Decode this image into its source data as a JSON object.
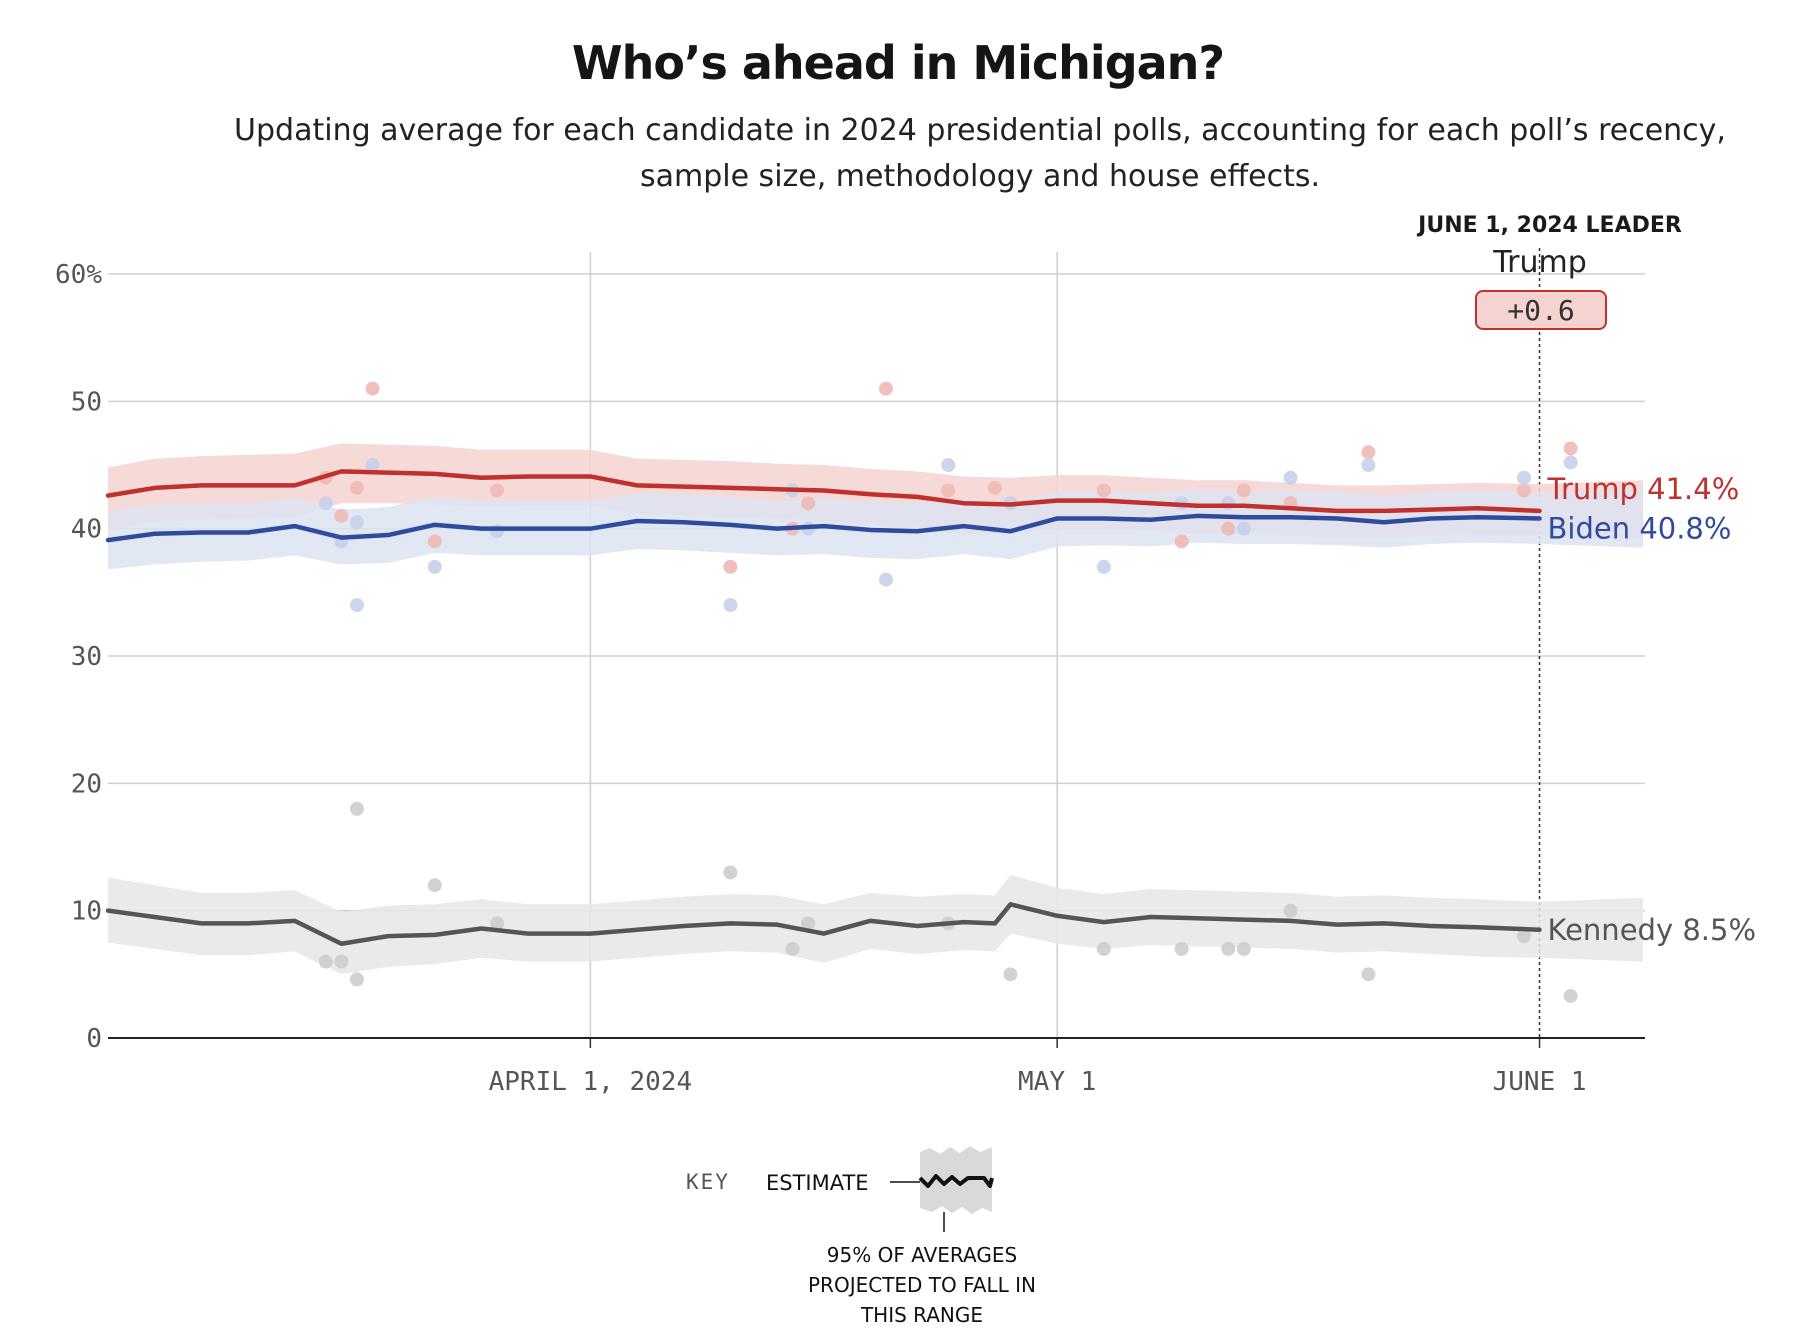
{
  "title": "Who’s ahead in Michigan?",
  "subtitle": "Updating average for each candidate in 2024 presidential polls, accounting for each poll’s recency, sample size, methodology and house effects.",
  "leader": {
    "heading": "JUNE 1, 2024 LEADER",
    "name": "Trump",
    "margin": "+0.6"
  },
  "key": {
    "title": "KEY",
    "estimate_label": "ESTIMATE",
    "range_note": [
      "95% OF AVERAGES",
      "PROJECTED TO FALL IN",
      "THIS RANGE"
    ]
  },
  "colors": {
    "trump": "#c0302c",
    "trump_band": "#f4d3d1",
    "biden": "#2f4b9e",
    "biden_band": "#dde3f2",
    "kennedy": "#555555",
    "kennedy_band": "#e6e6e6"
  },
  "chart_data": {
    "type": "line",
    "title": "Who’s ahead in Michigan?",
    "xlabel": "",
    "ylabel": "",
    "y_ticks": [
      0,
      10,
      20,
      30,
      40,
      50,
      60
    ],
    "y_tick_labels": [
      "0",
      "10",
      "20",
      "30",
      "40",
      "50",
      "60%"
    ],
    "ylim": [
      0,
      60
    ],
    "xlim": [
      "2024-03-01",
      "2024-06-09"
    ],
    "x_ticks": [
      {
        "date": "2024-04-01",
        "label": "APRIL 1, 2024"
      },
      {
        "date": "2024-05-01",
        "label": "MAY 1"
      },
      {
        "date": "2024-06-01",
        "label": "JUNE 1"
      }
    ],
    "grid": true,
    "current_date": "2024-06-01",
    "series": [
      {
        "name": "Trump",
        "end_label": "Trump 41.4%",
        "color": "#c0302c",
        "x": [
          "2024-03-01",
          "2024-03-04",
          "2024-03-07",
          "2024-03-10",
          "2024-03-13",
          "2024-03-16",
          "2024-03-19",
          "2024-03-22",
          "2024-03-25",
          "2024-03-28",
          "2024-04-01",
          "2024-04-04",
          "2024-04-07",
          "2024-04-10",
          "2024-04-13",
          "2024-04-16",
          "2024-04-19",
          "2024-04-22",
          "2024-04-25",
          "2024-04-28",
          "2024-05-01",
          "2024-05-04",
          "2024-05-07",
          "2024-05-10",
          "2024-05-13",
          "2024-05-16",
          "2024-05-19",
          "2024-05-22",
          "2024-05-25",
          "2024-05-28",
          "2024-06-01"
        ],
        "values": [
          42.6,
          43.2,
          43.4,
          43.4,
          43.4,
          44.5,
          44.4,
          44.3,
          44.0,
          44.1,
          44.1,
          43.4,
          43.3,
          43.2,
          43.1,
          43.0,
          42.7,
          42.5,
          42.0,
          41.9,
          42.2,
          42.2,
          42.0,
          41.8,
          41.8,
          41.6,
          41.4,
          41.4,
          41.5,
          41.6,
          41.4
        ],
        "band_low": [
          40.0,
          40.5,
          40.7,
          40.8,
          40.9,
          42.0,
          42.0,
          41.9,
          41.7,
          41.8,
          41.8,
          41.2,
          41.0,
          40.9,
          40.8,
          40.6,
          40.3,
          40.1,
          39.6,
          39.6,
          40.0,
          40.0,
          39.8,
          39.6,
          39.6,
          39.4,
          39.3,
          39.3,
          39.4,
          39.5,
          39.5
        ],
        "band_high": [
          44.8,
          45.5,
          45.7,
          45.8,
          45.9,
          46.7,
          46.6,
          46.5,
          46.2,
          46.2,
          46.2,
          45.5,
          45.4,
          45.3,
          45.1,
          45.0,
          44.7,
          44.5,
          44.1,
          44.0,
          44.2,
          44.2,
          44.0,
          43.8,
          43.8,
          43.6,
          43.4,
          43.4,
          43.5,
          43.6,
          43.5
        ],
        "polls": [
          {
            "date": "2024-03-15",
            "value": 44.0
          },
          {
            "date": "2024-03-16",
            "value": 41.0
          },
          {
            "date": "2024-03-17",
            "value": 43.2
          },
          {
            "date": "2024-03-18",
            "value": 51.0
          },
          {
            "date": "2024-03-22",
            "value": 39.0
          },
          {
            "date": "2024-03-26",
            "value": 43.0
          },
          {
            "date": "2024-04-10",
            "value": 37.0
          },
          {
            "date": "2024-04-14",
            "value": 40.0
          },
          {
            "date": "2024-04-15",
            "value": 42.0
          },
          {
            "date": "2024-04-20",
            "value": 51.0
          },
          {
            "date": "2024-04-24",
            "value": 43.0
          },
          {
            "date": "2024-04-27",
            "value": 43.2
          },
          {
            "date": "2024-05-04",
            "value": 43.0
          },
          {
            "date": "2024-05-09",
            "value": 39.0
          },
          {
            "date": "2024-05-12",
            "value": 40.0
          },
          {
            "date": "2024-05-13",
            "value": 43.0
          },
          {
            "date": "2024-05-16",
            "value": 42.0
          },
          {
            "date": "2024-05-21",
            "value": 46.0
          },
          {
            "date": "2024-05-31",
            "value": 43.0
          },
          {
            "date": "2024-06-03",
            "value": 46.3
          }
        ]
      },
      {
        "name": "Biden",
        "end_label": "Biden 40.8%",
        "color": "#2f4b9e",
        "x": [
          "2024-03-01",
          "2024-03-04",
          "2024-03-07",
          "2024-03-10",
          "2024-03-13",
          "2024-03-16",
          "2024-03-19",
          "2024-03-22",
          "2024-03-25",
          "2024-03-28",
          "2024-04-01",
          "2024-04-04",
          "2024-04-07",
          "2024-04-10",
          "2024-04-13",
          "2024-04-16",
          "2024-04-19",
          "2024-04-22",
          "2024-04-25",
          "2024-04-28",
          "2024-05-01",
          "2024-05-04",
          "2024-05-07",
          "2024-05-10",
          "2024-05-13",
          "2024-05-16",
          "2024-05-19",
          "2024-05-22",
          "2024-05-25",
          "2024-05-28",
          "2024-06-01"
        ],
        "values": [
          39.1,
          39.6,
          39.7,
          39.7,
          40.2,
          39.3,
          39.5,
          40.3,
          40.0,
          40.0,
          40.0,
          40.6,
          40.5,
          40.3,
          40.0,
          40.2,
          39.9,
          39.8,
          40.2,
          39.8,
          40.8,
          40.8,
          40.7,
          41.0,
          40.9,
          40.9,
          40.8,
          40.5,
          40.8,
          40.9,
          40.8
        ],
        "band_low": [
          36.8,
          37.2,
          37.4,
          37.5,
          37.9,
          37.2,
          37.3,
          38.1,
          37.9,
          37.9,
          37.9,
          38.4,
          38.3,
          38.1,
          37.9,
          38.0,
          37.7,
          37.6,
          38.0,
          37.6,
          38.6,
          38.7,
          38.6,
          38.9,
          38.8,
          38.8,
          38.7,
          38.5,
          38.8,
          38.9,
          38.8
        ],
        "band_high": [
          41.4,
          41.9,
          42.0,
          42.0,
          42.4,
          41.5,
          41.7,
          42.5,
          42.2,
          42.2,
          42.2,
          42.8,
          42.7,
          42.5,
          42.2,
          42.4,
          42.1,
          42.0,
          42.4,
          42.0,
          42.9,
          42.9,
          42.8,
          43.1,
          43.0,
          43.0,
          42.9,
          42.6,
          42.9,
          43.0,
          42.8
        ],
        "polls": [
          {
            "date": "2024-03-15",
            "value": 42.0
          },
          {
            "date": "2024-03-16",
            "value": 39.0
          },
          {
            "date": "2024-03-17",
            "value": 34.0
          },
          {
            "date": "2024-03-17",
            "value": 40.5
          },
          {
            "date": "2024-03-18",
            "value": 45.0
          },
          {
            "date": "2024-03-22",
            "value": 37.0
          },
          {
            "date": "2024-03-26",
            "value": 39.8
          },
          {
            "date": "2024-04-10",
            "value": 34.0
          },
          {
            "date": "2024-04-14",
            "value": 43.0
          },
          {
            "date": "2024-04-15",
            "value": 40.0
          },
          {
            "date": "2024-04-20",
            "value": 36.0
          },
          {
            "date": "2024-04-24",
            "value": 45.0
          },
          {
            "date": "2024-04-28",
            "value": 42.0
          },
          {
            "date": "2024-05-04",
            "value": 37.0
          },
          {
            "date": "2024-05-09",
            "value": 42.0
          },
          {
            "date": "2024-05-12",
            "value": 42.0
          },
          {
            "date": "2024-05-13",
            "value": 40.0
          },
          {
            "date": "2024-05-16",
            "value": 44.0
          },
          {
            "date": "2024-05-21",
            "value": 45.0
          },
          {
            "date": "2024-05-31",
            "value": 44.0
          },
          {
            "date": "2024-06-03",
            "value": 45.2
          }
        ]
      },
      {
        "name": "Kennedy",
        "end_label": "Kennedy 8.5%",
        "color": "#555555",
        "x": [
          "2024-03-01",
          "2024-03-04",
          "2024-03-07",
          "2024-03-10",
          "2024-03-13",
          "2024-03-16",
          "2024-03-19",
          "2024-03-22",
          "2024-03-25",
          "2024-03-28",
          "2024-04-01",
          "2024-04-04",
          "2024-04-07",
          "2024-04-10",
          "2024-04-13",
          "2024-04-16",
          "2024-04-19",
          "2024-04-22",
          "2024-04-25",
          "2024-04-27",
          "2024-04-28",
          "2024-05-01",
          "2024-05-04",
          "2024-05-07",
          "2024-05-10",
          "2024-05-13",
          "2024-05-16",
          "2024-05-19",
          "2024-05-22",
          "2024-05-25",
          "2024-05-28",
          "2024-06-01"
        ],
        "values": [
          10.0,
          9.5,
          9.0,
          9.0,
          9.2,
          7.4,
          8.0,
          8.1,
          8.6,
          8.2,
          8.2,
          8.5,
          8.8,
          9.0,
          8.9,
          8.2,
          9.2,
          8.8,
          9.1,
          9.0,
          10.5,
          9.6,
          9.1,
          9.5,
          9.4,
          9.3,
          9.2,
          8.9,
          9.0,
          8.8,
          8.7,
          8.5
        ],
        "band_low": [
          7.5,
          7.0,
          6.5,
          6.5,
          6.8,
          5.0,
          5.6,
          5.8,
          6.3,
          6.0,
          6.0,
          6.3,
          6.6,
          6.8,
          6.7,
          5.9,
          7.0,
          6.6,
          6.9,
          6.8,
          8.2,
          7.4,
          7.0,
          7.3,
          7.2,
          7.1,
          7.0,
          6.7,
          6.8,
          6.6,
          6.4,
          6.3
        ],
        "band_high": [
          12.6,
          12.0,
          11.4,
          11.4,
          11.6,
          9.9,
          10.4,
          10.5,
          10.9,
          10.5,
          10.5,
          10.8,
          11.1,
          11.3,
          11.2,
          10.5,
          11.4,
          11.1,
          11.3,
          11.2,
          12.8,
          11.8,
          11.3,
          11.7,
          11.6,
          11.5,
          11.4,
          11.1,
          11.2,
          11.0,
          10.9,
          10.7
        ],
        "polls": [
          {
            "date": "2024-03-15",
            "value": 6.0
          },
          {
            "date": "2024-03-16",
            "value": 6.0
          },
          {
            "date": "2024-03-17",
            "value": 4.6
          },
          {
            "date": "2024-03-17",
            "value": 18.0
          },
          {
            "date": "2024-03-22",
            "value": 12.0
          },
          {
            "date": "2024-03-26",
            "value": 9.0
          },
          {
            "date": "2024-04-10",
            "value": 13.0
          },
          {
            "date": "2024-04-14",
            "value": 7.0
          },
          {
            "date": "2024-04-15",
            "value": 9.0
          },
          {
            "date": "2024-04-24",
            "value": 9.0
          },
          {
            "date": "2024-04-28",
            "value": 5.0
          },
          {
            "date": "2024-05-04",
            "value": 7.0
          },
          {
            "date": "2024-05-09",
            "value": 7.0
          },
          {
            "date": "2024-05-12",
            "value": 7.0
          },
          {
            "date": "2024-05-13",
            "value": 7.0
          },
          {
            "date": "2024-05-16",
            "value": 10.0
          },
          {
            "date": "2024-05-21",
            "value": 5.0
          },
          {
            "date": "2024-05-31",
            "value": 8.0
          },
          {
            "date": "2024-06-03",
            "value": 3.3
          }
        ]
      }
    ]
  }
}
